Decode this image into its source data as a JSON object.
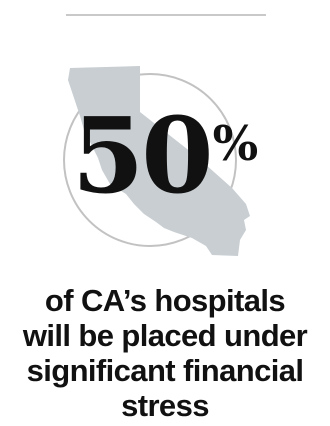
{
  "stat": {
    "number": "50",
    "percent_sign": "%"
  },
  "caption_lines": [
    "of CA’s hospitals",
    "will be placed under",
    "significant financial",
    "stress"
  ],
  "colors": {
    "state_fill": "#c8ced2",
    "circle_stroke": "#c2c2c2",
    "rule": "#c9c9c9",
    "text": "#111111",
    "background": "#ffffff"
  },
  "icons": {
    "map": "california-map-icon",
    "ring": "circle-outline"
  }
}
